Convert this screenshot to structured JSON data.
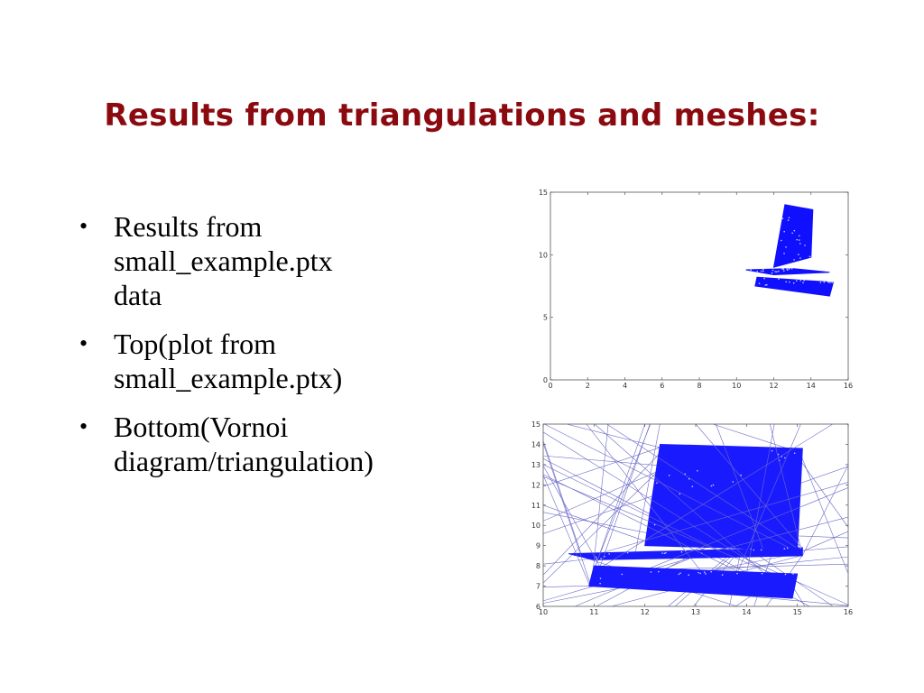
{
  "slide": {
    "title": "Results from triangulations and meshes:",
    "bullets": [
      {
        "line1": "Results from",
        "line2": "small_example.ptx",
        "line3": "data"
      },
      {
        "line1": "Top(plot from",
        "line2": "small_example.ptx)"
      },
      {
        "line1": "Bottom(Vornoi",
        "line2": "diagram/triangulation)"
      }
    ]
  },
  "chart_data": [
    {
      "type": "scatter",
      "xlim": [
        0,
        16
      ],
      "ylim": [
        0,
        15
      ],
      "xticks": [
        "0",
        "2",
        "4",
        "6",
        "8",
        "10",
        "12",
        "14",
        "16"
      ],
      "yticks": [
        "0",
        "5",
        "10",
        "15"
      ],
      "marker_color": "#1010ff",
      "grid": false,
      "regions": [
        {
          "x": [
            12.0,
            14.0,
            14.1,
            12.6
          ],
          "y": [
            9.0,
            9.8,
            13.6,
            14.0
          ]
        },
        {
          "x": [
            10.5,
            13.0,
            15.0,
            12.0
          ],
          "y": [
            8.8,
            8.9,
            8.6,
            8.4
          ]
        },
        {
          "x": [
            11.1,
            15.2,
            15.0,
            11.0
          ],
          "y": [
            8.2,
            7.8,
            6.7,
            7.5
          ]
        }
      ]
    },
    {
      "type": "scatter",
      "xlim": [
        10,
        16
      ],
      "ylim": [
        6,
        15
      ],
      "xticks": [
        "10",
        "11",
        "12",
        "13",
        "14",
        "15",
        "16"
      ],
      "yticks": [
        "6",
        "7",
        "8",
        "9",
        "10",
        "11",
        "12",
        "13",
        "14",
        "15"
      ],
      "marker_color": "#1a1aff",
      "line_color": "#6a6ac8",
      "grid": false,
      "regions": [
        {
          "x": [
            12.3,
            15.1,
            15.0,
            12.0
          ],
          "y": [
            14.0,
            13.8,
            8.8,
            9.0
          ]
        },
        {
          "x": [
            10.5,
            15.1,
            15.1,
            11.0
          ],
          "y": [
            8.6,
            8.9,
            8.5,
            8.3
          ]
        },
        {
          "x": [
            11.0,
            15.0,
            14.9,
            10.9
          ],
          "y": [
            8.0,
            7.6,
            6.4,
            7.0
          ]
        }
      ]
    }
  ]
}
